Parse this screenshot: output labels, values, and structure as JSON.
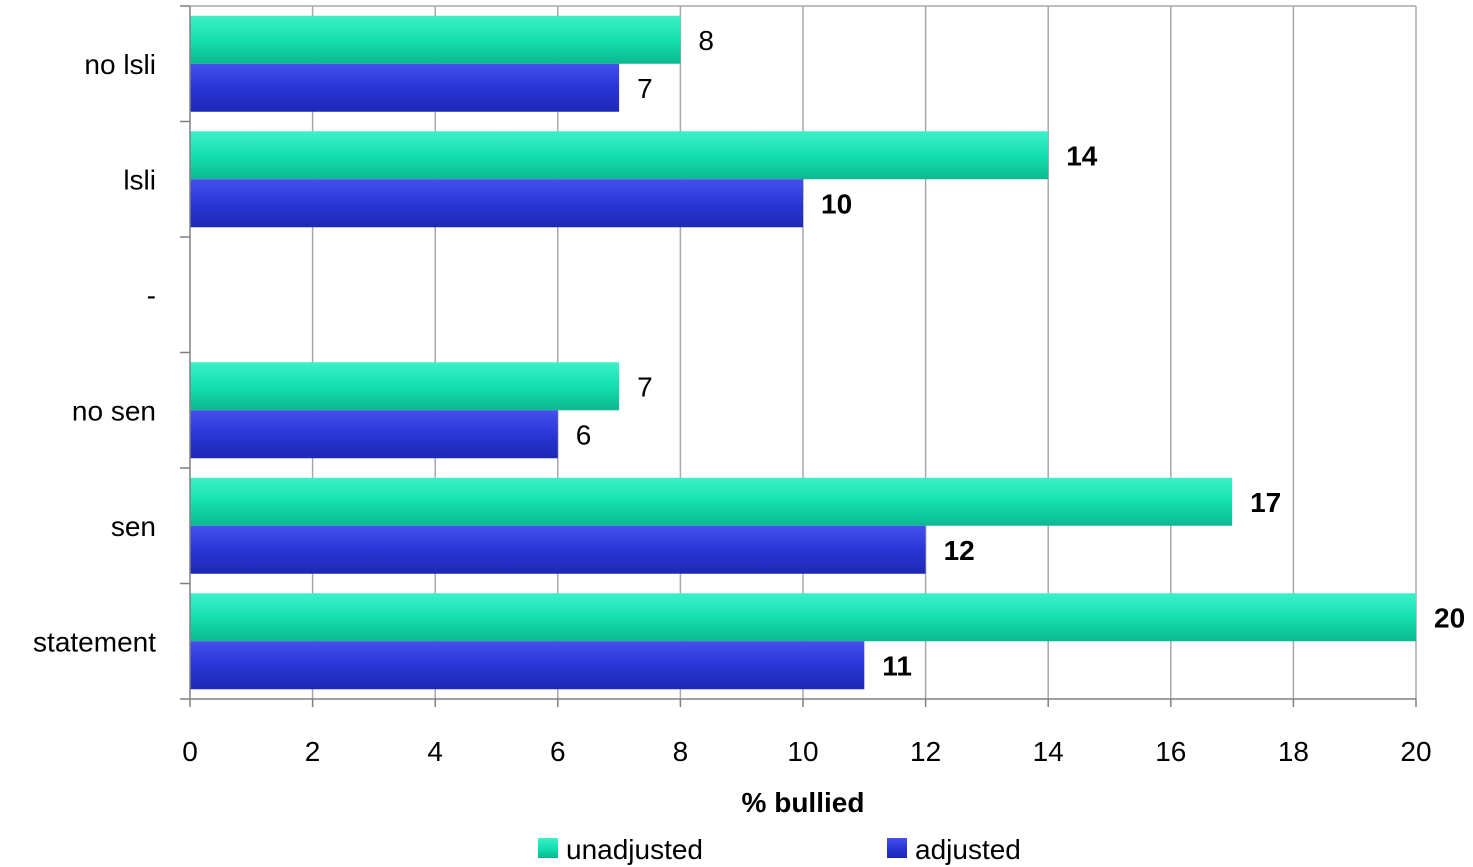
{
  "chart_data": {
    "type": "bar",
    "orientation": "horizontal",
    "categories": [
      "no lsli",
      "lsli",
      "-",
      "no sen",
      "sen",
      "statement"
    ],
    "series": [
      {
        "name": "unadjusted",
        "color": "#14e0b0",
        "values": [
          8,
          14,
          null,
          7,
          17,
          20
        ],
        "labels": [
          "8",
          "14",
          "",
          "7",
          "17",
          "20"
        ],
        "bold": [
          false,
          true,
          false,
          false,
          true,
          true
        ]
      },
      {
        "name": "adjusted",
        "color": "#2a36d6",
        "values": [
          7,
          10,
          null,
          6,
          12,
          11
        ],
        "labels": [
          "7",
          "10",
          "",
          "6",
          "12",
          "11"
        ],
        "bold": [
          false,
          true,
          false,
          false,
          true,
          true
        ]
      }
    ],
    "xlabel": "% bullied",
    "xlim": [
      0,
      20
    ],
    "xticks": [
      "0",
      "2",
      "4",
      "6",
      "8",
      "10",
      "12",
      "14",
      "16",
      "18",
      "20"
    ],
    "grid": true,
    "legend": "bottom"
  }
}
